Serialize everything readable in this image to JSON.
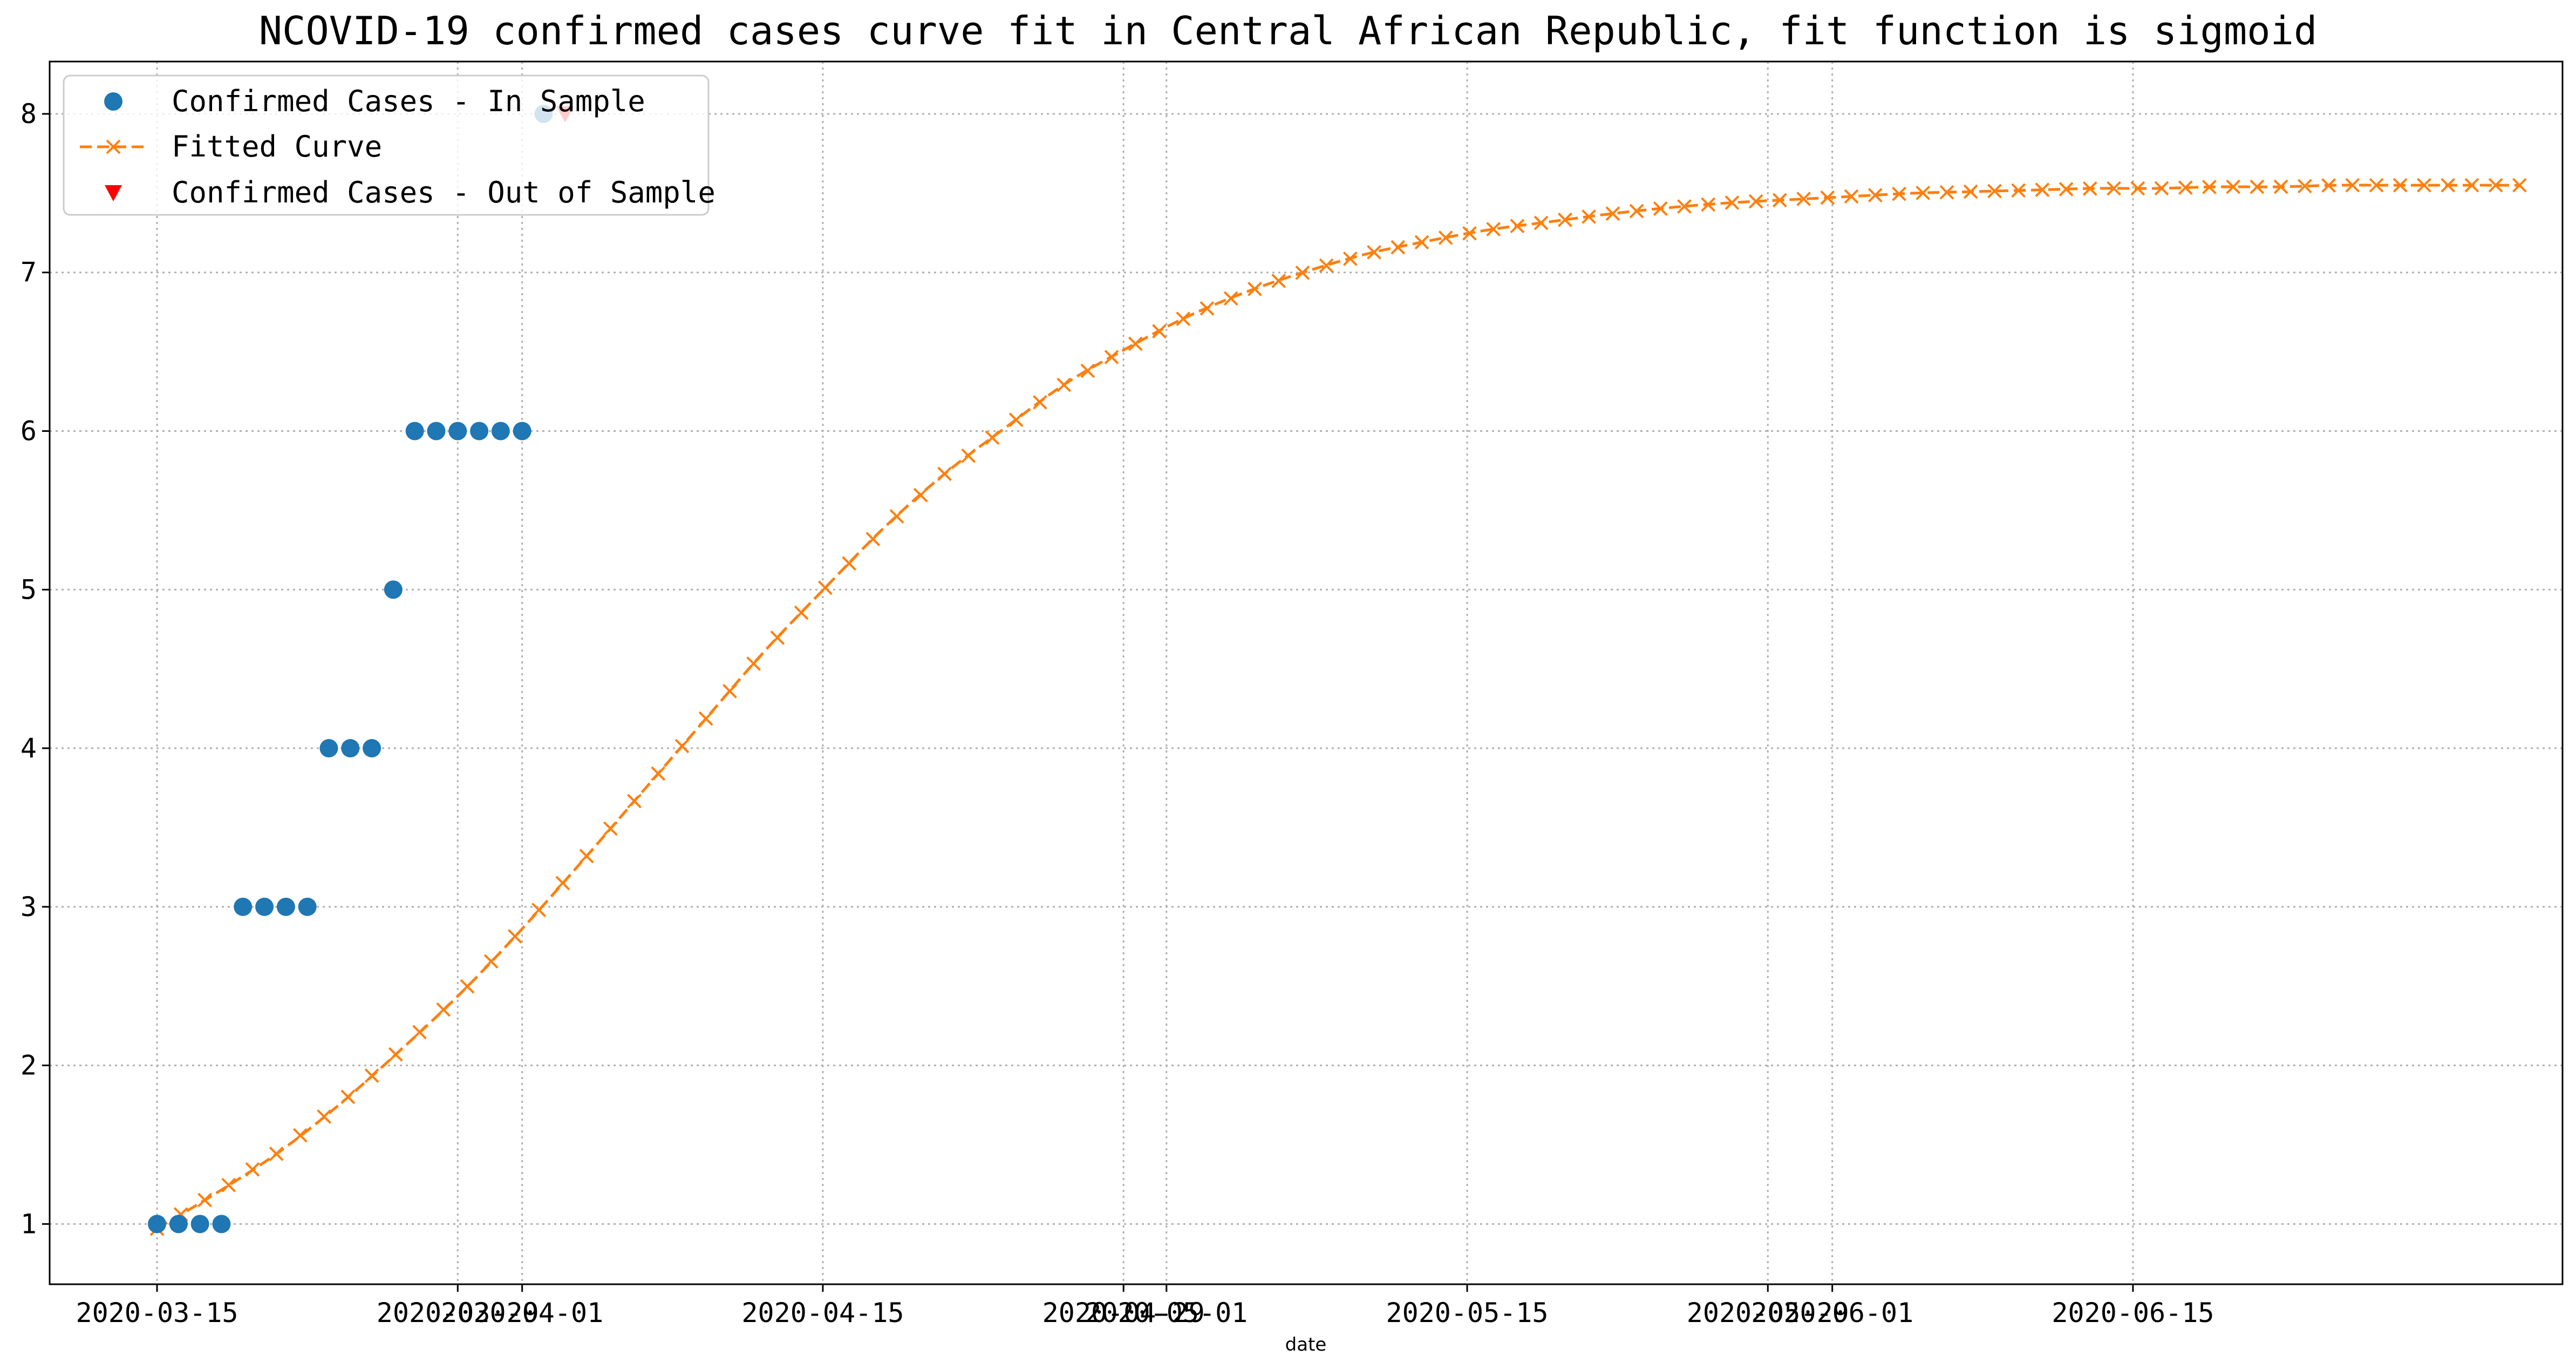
{
  "chart_data": {
    "type": "line",
    "title": "NCOVID-19 confirmed cases curve fit in Central African Republic, fit function is sigmoid",
    "xlabel": "date",
    "ylabel": "",
    "x_axis": "date",
    "xlim": [
      "2020-03-10",
      "2020-07-05"
    ],
    "ylim": [
      0.62,
      8.33
    ],
    "y_ticks": [
      1,
      2,
      3,
      4,
      5,
      6,
      7,
      8
    ],
    "x_ticks": [
      "2020-03-15",
      "2020-03-29",
      "2020-04-01",
      "2020-04-15",
      "2020-04-29",
      "2020-05-01",
      "2020-05-15",
      "2020-05-29",
      "2020-06-01",
      "2020-06-15"
    ],
    "grid": true,
    "legend_position": "top-left",
    "legend": [
      "Confirmed Cases - In Sample",
      "Fitted Curve",
      "Confirmed Cases - Out of Sample"
    ],
    "colors": {
      "in_sample": "#1f77b4",
      "fitted": "#ff7f0e",
      "out_of_sample": "#ff0000"
    },
    "series": [
      {
        "name": "Confirmed Cases - In Sample",
        "style": "markers-circle",
        "points": [
          [
            "2020-03-15",
            1
          ],
          [
            "2020-03-16",
            1
          ],
          [
            "2020-03-17",
            1
          ],
          [
            "2020-03-18",
            1
          ],
          [
            "2020-03-19",
            3
          ],
          [
            "2020-03-20",
            3
          ],
          [
            "2020-03-21",
            3
          ],
          [
            "2020-03-22",
            3
          ],
          [
            "2020-03-23",
            4
          ],
          [
            "2020-03-24",
            4
          ],
          [
            "2020-03-25",
            4
          ],
          [
            "2020-03-26",
            5
          ],
          [
            "2020-03-27",
            6
          ],
          [
            "2020-03-28",
            6
          ],
          [
            "2020-03-29",
            6
          ],
          [
            "2020-03-30",
            6
          ],
          [
            "2020-03-31",
            6
          ],
          [
            "2020-04-01",
            6
          ],
          [
            "2020-04-02",
            8
          ]
        ]
      },
      {
        "name": "Fitted Curve",
        "style": "dashed-line-x-markers",
        "x_start": "2020-03-15",
        "x_end": "2020-07-03",
        "values": [
          0.97,
          1.2,
          1.45,
          1.75,
          2.09,
          2.45,
          2.85,
          3.28,
          3.72,
          4.16,
          4.6,
          5.0,
          5.39,
          5.73,
          6.02,
          6.3,
          6.52,
          6.72,
          6.88,
          7.01,
          7.12,
          7.2,
          7.27,
          7.32,
          7.37,
          7.41,
          7.44,
          7.46,
          7.48,
          7.5,
          7.51,
          7.52,
          7.53,
          7.53,
          7.54,
          7.54,
          7.55,
          7.55,
          7.55,
          7.55
        ]
      },
      {
        "name": "Confirmed Cases - Out of Sample",
        "style": "markers-triangle-down",
        "points": [
          [
            "2020-04-03",
            8
          ]
        ]
      }
    ]
  }
}
